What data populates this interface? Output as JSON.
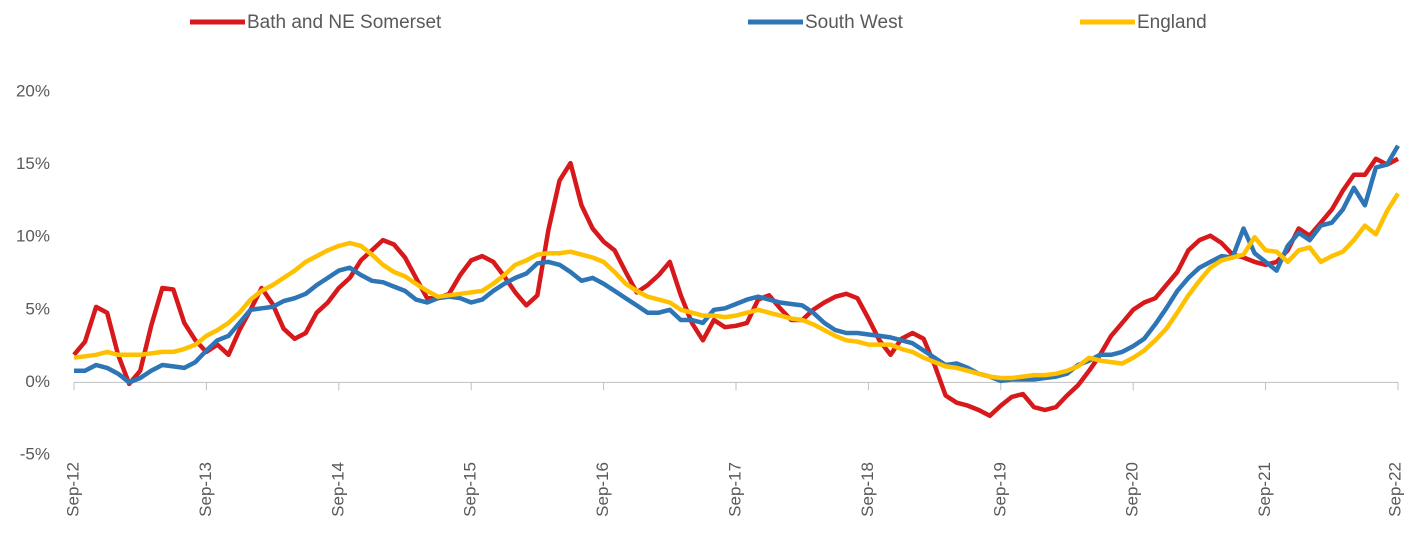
{
  "chart_data": {
    "type": "line",
    "categories": [
      "Sep-12",
      null,
      null,
      null,
      null,
      null,
      null,
      null,
      null,
      null,
      null,
      null,
      "Sep-13",
      null,
      null,
      null,
      null,
      null,
      null,
      null,
      null,
      null,
      null,
      null,
      "Sep-14",
      null,
      null,
      null,
      null,
      null,
      null,
      null,
      null,
      null,
      null,
      null,
      "Sep-15",
      null,
      null,
      null,
      null,
      null,
      null,
      null,
      null,
      null,
      null,
      null,
      "Sep-16",
      null,
      null,
      null,
      null,
      null,
      null,
      null,
      null,
      null,
      null,
      null,
      "Sep-17",
      null,
      null,
      null,
      null,
      null,
      null,
      null,
      null,
      null,
      null,
      null,
      "Sep-18",
      null,
      null,
      null,
      null,
      null,
      null,
      null,
      null,
      null,
      null,
      null,
      "Sep-19",
      null,
      null,
      null,
      null,
      null,
      null,
      null,
      null,
      null,
      null,
      null,
      "Sep-20",
      null,
      null,
      null,
      null,
      null,
      null,
      null,
      null,
      null,
      null,
      null,
      "Sep-21",
      null,
      null,
      null,
      null,
      null,
      null,
      null,
      null,
      null,
      null,
      null,
      "Sep-22"
    ],
    "series": [
      {
        "name": "Bath and NE Somerset",
        "color": "#d7191c",
        "values": [
          1.9,
          2.8,
          5.2,
          4.8,
          1.9,
          -0.1,
          0.8,
          3.9,
          6.5,
          6.4,
          4.1,
          2.9,
          2.1,
          2.6,
          1.9,
          3.6,
          5.0,
          6.5,
          5.4,
          3.7,
          3.0,
          3.4,
          4.8,
          5.5,
          6.5,
          7.2,
          8.4,
          9.1,
          9.8,
          9.5,
          8.6,
          7.2,
          5.8,
          5.8,
          6.1,
          7.4,
          8.4,
          8.7,
          8.3,
          7.3,
          6.2,
          5.3,
          6.0,
          10.5,
          13.9,
          15.1,
          12.2,
          10.6,
          9.7,
          9.1,
          7.6,
          6.2,
          6.7,
          7.4,
          8.3,
          6.0,
          4.1,
          2.9,
          4.3,
          3.8,
          3.9,
          4.1,
          5.7,
          6.0,
          5.1,
          4.3,
          4.3,
          5.0,
          5.5,
          5.9,
          6.1,
          5.8,
          4.4,
          2.9,
          1.9,
          3.0,
          3.4,
          3.0,
          1.2,
          -0.9,
          -1.4,
          -1.6,
          -1.9,
          -2.3,
          -1.6,
          -1.0,
          -0.8,
          -1.7,
          -1.9,
          -1.7,
          -0.9,
          -0.2,
          0.8,
          1.9,
          3.2,
          4.1,
          5.0,
          5.5,
          5.8,
          6.7,
          7.6,
          9.1,
          9.8,
          10.1,
          9.6,
          8.8,
          8.6,
          8.3,
          8.1,
          8.3,
          9.1,
          10.6,
          10.1,
          11.0,
          11.9,
          13.2,
          14.3,
          14.3,
          15.4,
          15.0,
          15.4
        ]
      },
      {
        "name": "South West",
        "color": "#2e75b6",
        "values": [
          0.8,
          0.8,
          1.2,
          1.0,
          0.6,
          0.0,
          0.3,
          0.8,
          1.2,
          1.1,
          1.0,
          1.4,
          2.2,
          2.9,
          3.2,
          4.1,
          5.0,
          5.1,
          5.2,
          5.6,
          5.8,
          6.1,
          6.7,
          7.2,
          7.7,
          7.9,
          7.4,
          7.0,
          6.9,
          6.6,
          6.3,
          5.7,
          5.5,
          5.8,
          5.9,
          5.8,
          5.5,
          5.7,
          6.3,
          6.8,
          7.2,
          7.5,
          8.2,
          8.3,
          8.1,
          7.6,
          7.0,
          7.2,
          6.8,
          6.3,
          5.8,
          5.3,
          4.8,
          4.8,
          5.0,
          4.3,
          4.3,
          4.1,
          5.0,
          5.1,
          5.4,
          5.7,
          5.9,
          5.7,
          5.5,
          5.4,
          5.3,
          4.8,
          4.1,
          3.6,
          3.4,
          3.4,
          3.3,
          3.2,
          3.1,
          2.9,
          2.7,
          2.2,
          1.7,
          1.2,
          1.3,
          1.0,
          0.6,
          0.4,
          0.1,
          0.2,
          0.2,
          0.2,
          0.3,
          0.4,
          0.6,
          1.2,
          1.5,
          1.9,
          1.9,
          2.1,
          2.5,
          3.0,
          4.0,
          5.1,
          6.3,
          7.2,
          7.9,
          8.3,
          8.7,
          8.6,
          10.6,
          8.9,
          8.3,
          7.7,
          9.4,
          10.3,
          9.8,
          10.8,
          11.0,
          11.9,
          13.4,
          12.2,
          14.8,
          15.0,
          16.3
        ]
      },
      {
        "name": "England",
        "color": "#ffc000",
        "values": [
          1.7,
          1.8,
          1.9,
          2.1,
          1.9,
          1.9,
          1.9,
          2.0,
          2.1,
          2.1,
          2.3,
          2.6,
          3.2,
          3.6,
          4.1,
          4.8,
          5.7,
          6.3,
          6.7,
          7.2,
          7.7,
          8.3,
          8.7,
          9.1,
          9.4,
          9.6,
          9.4,
          8.8,
          8.1,
          7.6,
          7.3,
          6.8,
          6.3,
          5.9,
          6.0,
          6.1,
          6.2,
          6.3,
          6.8,
          7.4,
          8.1,
          8.4,
          8.8,
          8.9,
          8.9,
          9.0,
          8.8,
          8.6,
          8.3,
          7.6,
          6.8,
          6.3,
          5.9,
          5.7,
          5.5,
          5.0,
          4.8,
          4.6,
          4.6,
          4.5,
          4.6,
          4.8,
          5.0,
          4.8,
          4.6,
          4.4,
          4.3,
          4.0,
          3.6,
          3.2,
          2.9,
          2.8,
          2.6,
          2.6,
          2.6,
          2.3,
          2.1,
          1.7,
          1.4,
          1.1,
          1.0,
          0.8,
          0.6,
          0.4,
          0.3,
          0.3,
          0.4,
          0.5,
          0.5,
          0.6,
          0.8,
          1.1,
          1.7,
          1.5,
          1.4,
          1.3,
          1.7,
          2.2,
          2.9,
          3.7,
          4.8,
          6.0,
          7.0,
          7.9,
          8.4,
          8.6,
          8.8,
          10.0,
          9.1,
          9.0,
          8.3,
          9.1,
          9.3,
          8.3,
          8.7,
          9.0,
          9.8,
          10.8,
          10.2,
          11.8,
          13.0
        ]
      }
    ],
    "ylim": [
      -5,
      20
    ],
    "yticks": [
      {
        "value": -5,
        "label": "-5%"
      },
      {
        "value": 0,
        "label": "0%"
      },
      {
        "value": 5,
        "label": "5%"
      },
      {
        "value": 10,
        "label": "10%"
      },
      {
        "value": 15,
        "label": "15%"
      },
      {
        "value": 20,
        "label": "20%"
      }
    ],
    "grid": false,
    "legend": "top"
  }
}
